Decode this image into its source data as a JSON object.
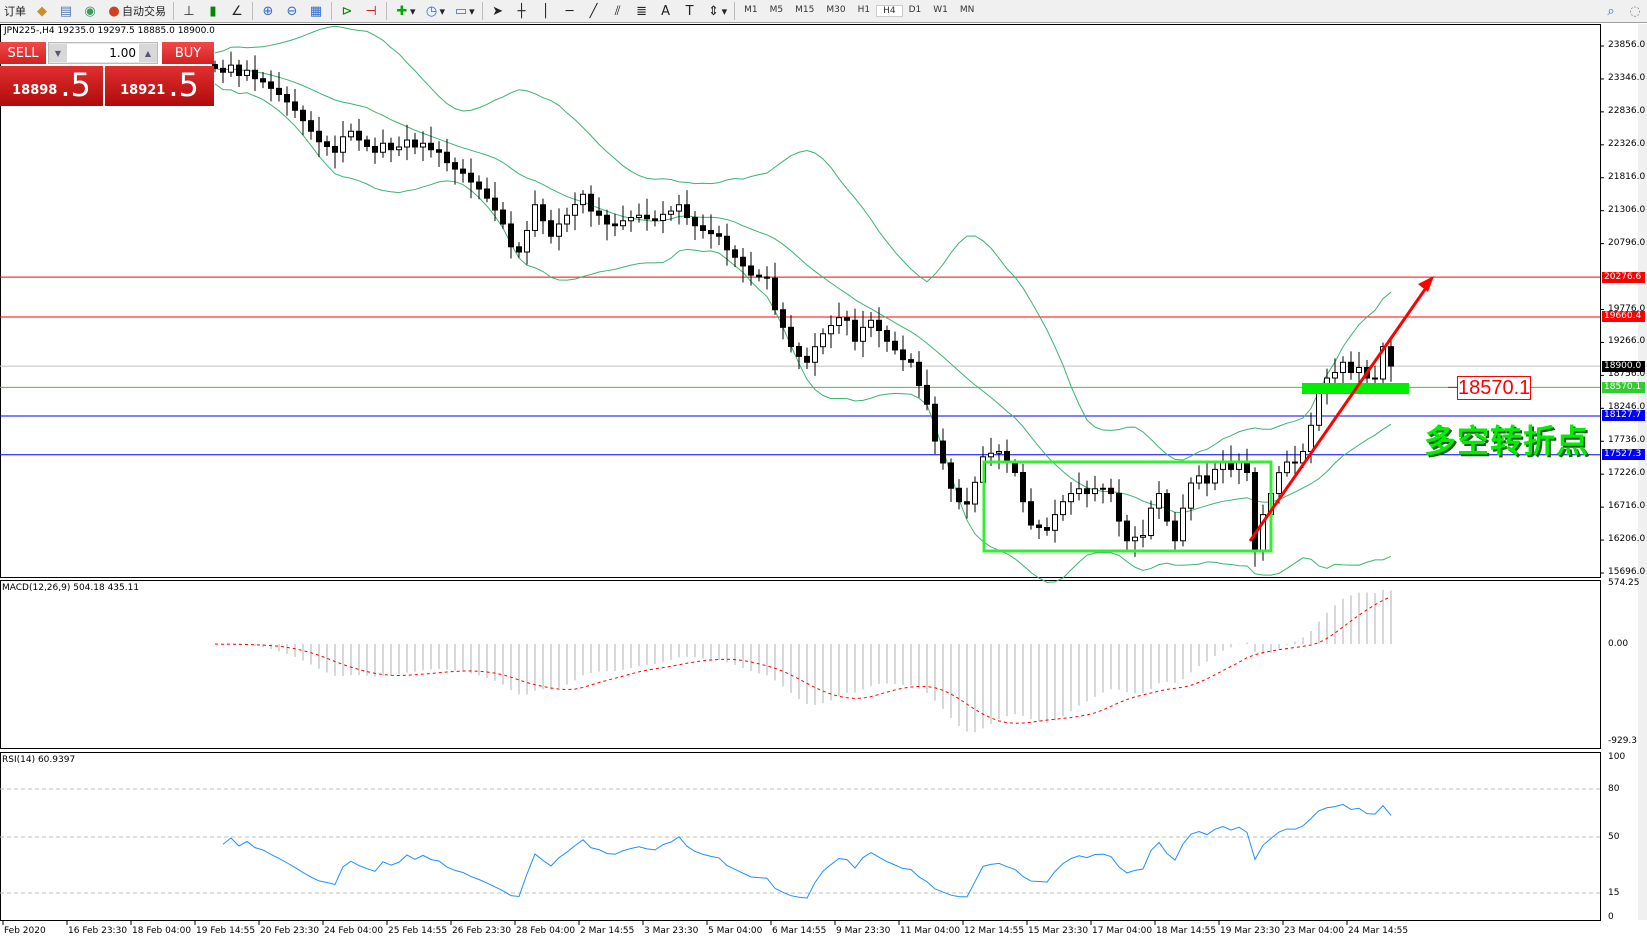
{
  "toolbar": {
    "items": [
      {
        "label": "订单",
        "icon": "order-icon"
      },
      {
        "label": "",
        "icon": "history-icon"
      },
      {
        "label": "",
        "icon": "terminal-icon"
      },
      {
        "label": "",
        "icon": "signal-icon"
      },
      {
        "label": "自动交易",
        "icon": "autotrade-icon"
      }
    ],
    "timeframes": [
      "M1",
      "M5",
      "M15",
      "M30",
      "H1",
      "H4",
      "D1",
      "W1",
      "MN"
    ],
    "active_timeframe": "H4"
  },
  "chart": {
    "title": "JPN225-,H4  19235.0 19297.5 18885.0 18900.0",
    "price_ticks": [
      "23856.0",
      "23346.0",
      "22836.0",
      "22326.0",
      "21816.0",
      "21306.0",
      "20796.0",
      "19776.0",
      "19266.0",
      "18756.0",
      "18246.0",
      "17736.0",
      "17226.0",
      "16716.0",
      "16206.0",
      "15696.0"
    ],
    "price_range": [
      15696,
      23856
    ],
    "levels": [
      {
        "value": "20276.6",
        "color": "#ff0000"
      },
      {
        "value": "19660.4",
        "color": "#ff0000"
      },
      {
        "value": "18900.0",
        "color": "#000000",
        "line": "#c0c0c0"
      },
      {
        "value": "18570.1",
        "color": "#33cc33"
      },
      {
        "value": "18127.7",
        "color": "#0000ff"
      },
      {
        "value": "17527.3",
        "color": "#0000ff"
      }
    ],
    "annotation_price": "18570.1",
    "annotation_text": "多空转折点",
    "closes": [
      23510,
      23450,
      23560,
      23400,
      23480,
      23350,
      23300,
      23200,
      23105,
      22990,
      22861,
      22700,
      22536,
      22373,
      22300,
      22211,
      22450,
      22536,
      22400,
      22300,
      22211,
      22350,
      22250,
      22292,
      22400,
      22292,
      22350,
      22250,
      22211,
      22050,
      21950,
      21886,
      21750,
      21642,
      21500,
      21316,
      21100,
      20747,
      20666,
      21000,
      21398,
      21150,
      20910,
      21100,
      21235,
      21400,
      21560,
      21300,
      21235,
      21100,
      21073,
      21150,
      21200,
      21235,
      21180,
      21154,
      21250,
      21300,
      21398,
      21200,
      21073,
      21000,
      20950,
      20910,
      20700,
      20585,
      20450,
      20308,
      20280,
      20260,
      19772,
      19500,
      19203,
      19050,
      18959,
      19200,
      19400,
      19528,
      19650,
      19609,
      19284,
      19500,
      19609,
      19450,
      19284,
      19150,
      19000,
      18959,
      18600,
      18309,
      17739,
      17400,
      17008,
      16800,
      16764,
      17100,
      17495,
      17550,
      17577,
      17400,
      17252,
      16800,
      16439,
      16400,
      16357,
      16600,
      16800,
      16926,
      17000,
      16926,
      17000,
      17008,
      16926,
      16500,
      16195,
      16250,
      16276,
      16700,
      16926,
      16500,
      16195,
      16700,
      17089,
      17200,
      17089,
      17300,
      17414,
      17300,
      17414,
      17252,
      16032,
      16600,
      16926,
      17250,
      17414,
      17400,
      17577,
      17983,
      18500,
      18715,
      18800,
      18959,
      18800,
      18878,
      18715,
      18700,
      19200,
      18900
    ],
    "bull_color": "#ffffff",
    "bear_color": "#000000",
    "band_color": "#3cb371"
  },
  "trade_panel": {
    "sell_label": "SELL",
    "buy_label": "BUY",
    "lot": "1.00",
    "sell_price_main": "18898",
    "sell_price_frac": ".5",
    "buy_price_main": "18921",
    "buy_price_frac": ".5"
  },
  "macd": {
    "title": "MACD(12,26,9) 504.18 435.11",
    "ticks": [
      "574.25",
      "0.00",
      "-929.3"
    ],
    "range": [
      -929.3,
      574.25
    ],
    "signal_color": "#ff0000"
  },
  "rsi": {
    "title": "RSI(14) 60.9397",
    "ticks": [
      "100",
      "80",
      "50",
      "15",
      "0"
    ],
    "levels": [
      80,
      50,
      15
    ],
    "line_color": "#1e90ff"
  },
  "time_labels": [
    "Feb 2020",
    "16 Feb 23:30",
    "18 Feb 04:00",
    "19 Feb 14:55",
    "20 Feb 23:30",
    "24 Feb 04:00",
    "25 Feb 14:55",
    "26 Feb 23:30",
    "28 Feb 04:00",
    "2 Mar 14:55",
    "3 Mar 23:30",
    "5 Mar 04:00",
    "6 Mar 14:55",
    "9 Mar 23:30",
    "11 Mar 04:00",
    "12 Mar 14:55",
    "15 Mar 23:30",
    "17 Mar 04:00",
    "18 Mar 14:55",
    "19 Mar 23:30",
    "23 Mar 04:00",
    "24 Mar 14:55"
  ]
}
